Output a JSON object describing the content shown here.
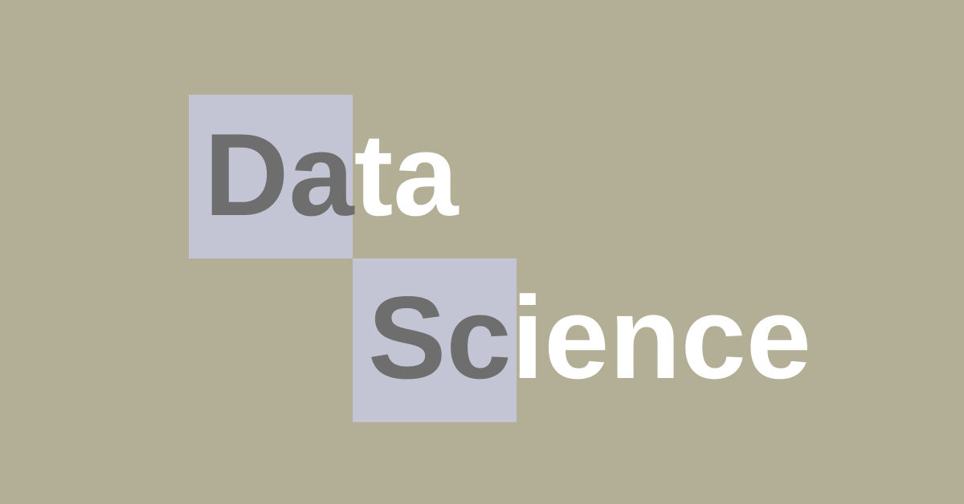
{
  "logo": {
    "line1": {
      "highlighted": "Da",
      "rest": "ta"
    },
    "line2": {
      "highlighted": "Sc",
      "rest": "ience"
    }
  },
  "colors": {
    "background": "#b3af96",
    "tile": "#c3c5d4",
    "highlighted_text": "#6e6e6e",
    "rest_text": "#ffffff"
  }
}
